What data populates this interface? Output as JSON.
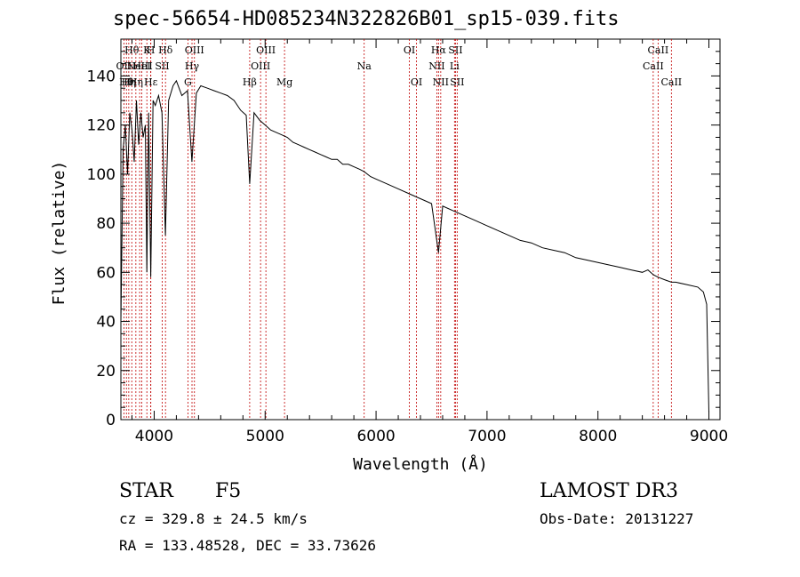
{
  "chart_data": {
    "type": "line",
    "title": "spec-56654-HD085234N322826B01_sp15-039.fits",
    "xlabel": "Wavelength (Å)",
    "ylabel": "Flux (relative)",
    "xlim": [
      3700,
      9100
    ],
    "ylim": [
      0,
      155
    ],
    "xticks": [
      4000,
      5000,
      6000,
      7000,
      8000,
      9000
    ],
    "yticks": [
      0,
      20,
      40,
      60,
      80,
      100,
      120,
      140
    ],
    "grid": false,
    "series": [
      {
        "name": "spectrum",
        "x": [
          3700,
          3720,
          3740,
          3760,
          3780,
          3800,
          3820,
          3840,
          3860,
          3880,
          3900,
          3920,
          3934,
          3950,
          3969,
          3990,
          4010,
          4040,
          4070,
          4101,
          4130,
          4170,
          4200,
          4250,
          4300,
          4340,
          4380,
          4420,
          4480,
          4540,
          4600,
          4660,
          4720,
          4780,
          4830,
          4861,
          4900,
          4950,
          5000,
          5050,
          5100,
          5150,
          5200,
          5250,
          5300,
          5350,
          5400,
          5450,
          5500,
          5550,
          5600,
          5650,
          5700,
          5750,
          5800,
          5850,
          5893,
          5950,
          6000,
          6100,
          6200,
          6300,
          6400,
          6500,
          6563,
          6600,
          6700,
          6800,
          6900,
          7000,
          7100,
          7200,
          7300,
          7400,
          7500,
          7600,
          7700,
          7800,
          7900,
          8000,
          8100,
          8200,
          8300,
          8400,
          8450,
          8500,
          8542,
          8600,
          8662,
          8700,
          8800,
          8900,
          8950,
          8980,
          9000
        ],
        "values": [
          40,
          110,
          120,
          100,
          125,
          118,
          105,
          130,
          112,
          125,
          115,
          120,
          60,
          125,
          58,
          130,
          128,
          132,
          125,
          75,
          130,
          136,
          138,
          132,
          134,
          105,
          133,
          136,
          135,
          134,
          133,
          132,
          130,
          126,
          124,
          96,
          125,
          122,
          120,
          118,
          117,
          116,
          115,
          113,
          112,
          111,
          110,
          109,
          108,
          107,
          106,
          106,
          104,
          104,
          103,
          102,
          101,
          99,
          98,
          96,
          94,
          92,
          90,
          88,
          68,
          87,
          85,
          83,
          81,
          79,
          77,
          75,
          73,
          72,
          70,
          69,
          68,
          66,
          65,
          64,
          63,
          62,
          61,
          60,
          61,
          59,
          58,
          57,
          56,
          56,
          55,
          54,
          52,
          47,
          3
        ]
      }
    ],
    "line_labels": [
      {
        "wave": 3727,
        "label": "OII",
        "row": 2
      },
      {
        "wave": 3750,
        "label": "Hθ",
        "row": 3
      },
      {
        "wave": 3771,
        "label": "Hη",
        "row": 3
      },
      {
        "wave": 3798,
        "label": "Hθ",
        "row": 1
      },
      {
        "wave": 3835,
        "label": "Hη",
        "row": 3
      },
      {
        "wave": 3869,
        "label": "NeIII",
        "row": 2
      },
      {
        "wave": 3889,
        "label": "HeI",
        "row": 2
      },
      {
        "wave": 3934,
        "label": "K",
        "row": 1
      },
      {
        "wave": 3969,
        "label": "H",
        "row": 1
      },
      {
        "wave": 3970,
        "label": "Hε",
        "row": 3
      },
      {
        "wave": 4072,
        "label": "SII",
        "row": 2
      },
      {
        "wave": 4102,
        "label": "Hδ",
        "row": 1
      },
      {
        "wave": 4304,
        "label": "G",
        "row": 3
      },
      {
        "wave": 4341,
        "label": "Hγ",
        "row": 2
      },
      {
        "wave": 4363,
        "label": "OIII",
        "row": 1
      },
      {
        "wave": 4861,
        "label": "Hβ",
        "row": 3
      },
      {
        "wave": 4959,
        "label": "OIII",
        "row": 2
      },
      {
        "wave": 5007,
        "label": "OIII",
        "row": 1
      },
      {
        "wave": 5175,
        "label": "Mg",
        "row": 3
      },
      {
        "wave": 5893,
        "label": "Na",
        "row": 2
      },
      {
        "wave": 6300,
        "label": "OI",
        "row": 1
      },
      {
        "wave": 6364,
        "label": "OI",
        "row": 3
      },
      {
        "wave": 6548,
        "label": "NII",
        "row": 2
      },
      {
        "wave": 6563,
        "label": "Hα",
        "row": 1
      },
      {
        "wave": 6583,
        "label": "NII",
        "row": 3
      },
      {
        "wave": 6707,
        "label": "Li",
        "row": 2
      },
      {
        "wave": 6716,
        "label": "SII",
        "row": 1
      },
      {
        "wave": 6731,
        "label": "SII",
        "row": 3
      },
      {
        "wave": 8498,
        "label": "CaII",
        "row": 2
      },
      {
        "wave": 8542,
        "label": "CaII",
        "row": 1
      },
      {
        "wave": 8662,
        "label": "CaII",
        "row": 3
      }
    ]
  },
  "info": {
    "object_class": "STAR",
    "subclass": "F5",
    "survey": "LAMOST DR3",
    "cz": "cz = 329.8 ± 24.5 km/s",
    "obs_date": "Obs-Date: 20131227",
    "coords": "RA = 133.48528, DEC =  33.73626"
  },
  "colors": {
    "line_marker": "#c00000",
    "spectrum": "#000000",
    "axes": "#000000"
  }
}
